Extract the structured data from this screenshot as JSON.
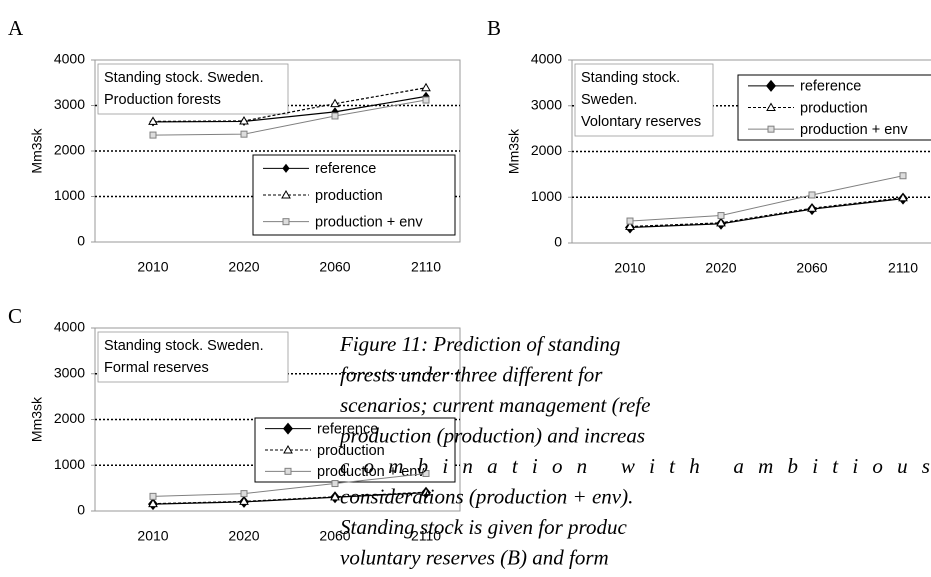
{
  "chart_data": [
    {
      "type": "line",
      "panel": "A",
      "title": [
        "Standing stock. Sweden.",
        "Production forests"
      ],
      "ylabel": "Mm3sk",
      "categories": [
        "2010",
        "2020",
        "2060",
        "2110"
      ],
      "series": [
        {
          "name": "reference",
          "color": "#000000",
          "linestyle": "solid",
          "marker": "diamond",
          "values": [
            2640,
            2650,
            2860,
            3200
          ]
        },
        {
          "name": "production",
          "color": "#000000",
          "linestyle": "dashed",
          "marker": "triangle",
          "values": [
            2650,
            2660,
            3040,
            3390
          ]
        },
        {
          "name": "production + env",
          "color": "#808080",
          "linestyle": "solid",
          "marker": "square",
          "values": [
            2350,
            2370,
            2770,
            3120
          ]
        }
      ],
      "ylim": [
        0,
        4000
      ],
      "yticks": [
        0,
        1000,
        2000,
        3000,
        4000
      ],
      "grid": true,
      "legend": "lower right"
    },
    {
      "type": "line",
      "panel": "B",
      "title": [
        "Standing stock.",
        "Sweden.",
        "Volontary reserves"
      ],
      "ylabel": "Mm3sk",
      "categories": [
        "2010",
        "2020",
        "2060",
        "2110"
      ],
      "series": [
        {
          "name": "reference",
          "color": "#000000",
          "linestyle": "solid",
          "marker": "diamond",
          "values": [
            340,
            420,
            740,
            970
          ]
        },
        {
          "name": "production",
          "color": "#000000",
          "linestyle": "dashed",
          "marker": "triangle",
          "values": [
            360,
            440,
            760,
            990
          ]
        },
        {
          "name": "production + env",
          "color": "#808080",
          "linestyle": "solid",
          "marker": "square",
          "values": [
            480,
            600,
            1050,
            1470
          ]
        }
      ],
      "ylim": [
        0,
        4000
      ],
      "yticks": [
        0,
        1000,
        2000,
        3000,
        4000
      ],
      "grid": true,
      "legend": "upper right"
    },
    {
      "type": "line",
      "panel": "C",
      "title": [
        "Standing stock. Sweden.",
        "Formal reserves"
      ],
      "ylabel": "Mm3sk",
      "categories": [
        "2010",
        "2020",
        "2060",
        "2110"
      ],
      "series": [
        {
          "name": "reference",
          "color": "#000000",
          "linestyle": "solid",
          "marker": "diamond",
          "values": [
            150,
            200,
            300,
            400
          ]
        },
        {
          "name": "production",
          "color": "#000000",
          "linestyle": "dashed",
          "marker": "triangle",
          "values": [
            160,
            210,
            310,
            410
          ]
        },
        {
          "name": "production + env",
          "color": "#808080",
          "linestyle": "solid",
          "marker": "square",
          "values": [
            320,
            380,
            600,
            820
          ]
        }
      ],
      "ylim": [
        0,
        4000
      ],
      "yticks": [
        0,
        1000,
        2000,
        3000,
        4000
      ],
      "grid": true,
      "legend": "center right"
    }
  ],
  "caption": [
    "Figure 11: Prediction of standing",
    "forests under three different for",
    "scenarios; current management (refe",
    "production (production) and increas",
    "combination with ambitious",
    "considerations (production + env).",
    "Standing stock is given for produc",
    "voluntary reserves (B) and form"
  ]
}
